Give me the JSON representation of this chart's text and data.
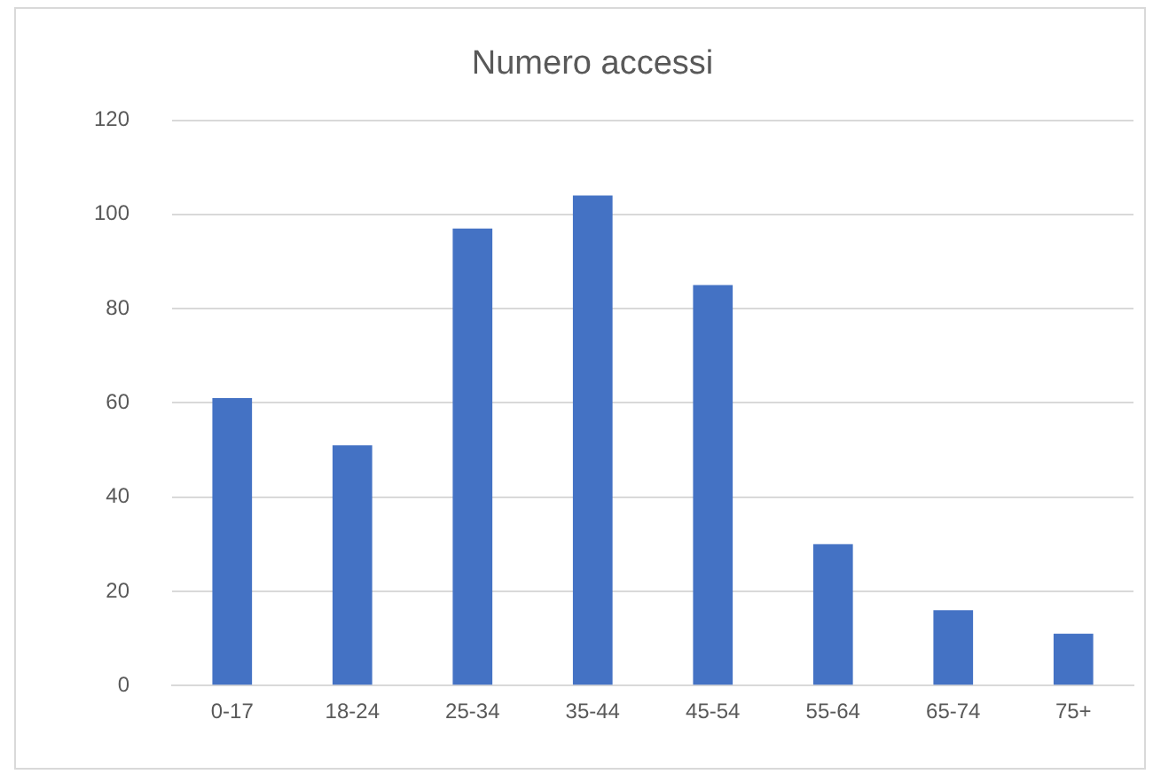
{
  "chart_data": {
    "type": "bar",
    "title": "Numero accessi",
    "categories": [
      "0-17",
      "18-24",
      "25-34",
      "35-44",
      "45-54",
      "55-64",
      "65-74",
      "75+"
    ],
    "values": [
      61,
      51,
      97,
      104,
      85,
      30,
      16,
      11
    ],
    "color": "#4472c4",
    "ylim": [
      0,
      120
    ],
    "yticks": [
      0,
      20,
      40,
      60,
      80,
      100,
      120
    ],
    "grid": "y",
    "legend": false
  }
}
